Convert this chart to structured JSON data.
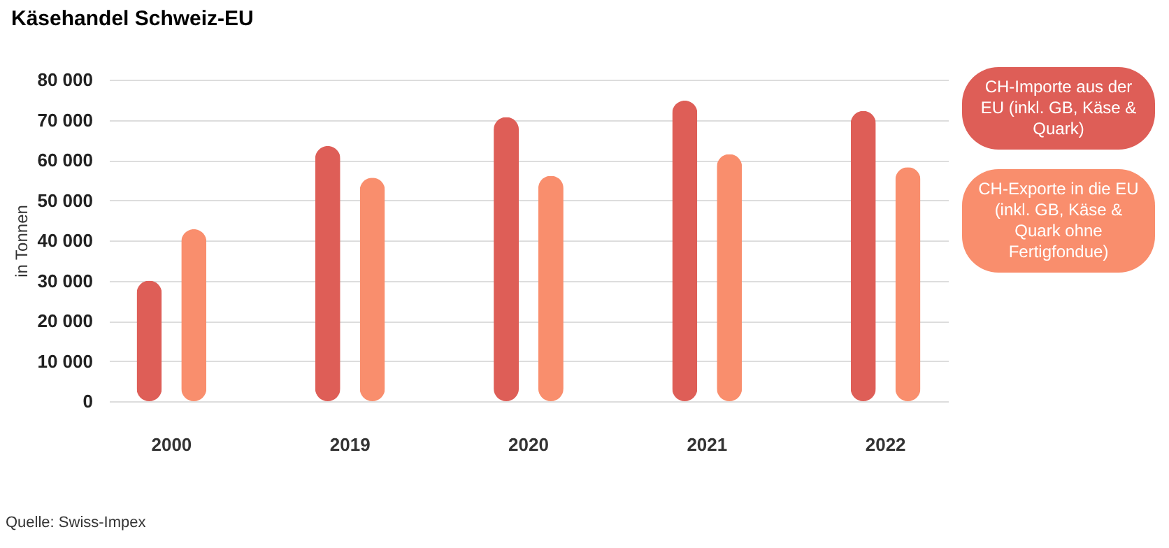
{
  "chart_data": {
    "type": "bar",
    "title": "Käsehandel Schweiz-EU",
    "ylabel": "in Tonnen",
    "categories": [
      "2000",
      "2019",
      "2020",
      "2021",
      "2022"
    ],
    "series": [
      {
        "name": "CH-Importe aus der EU (inkl. GB, Käse & Quark)",
        "color": "#de5e57",
        "values": [
          30000,
          63500,
          70700,
          74800,
          72200
        ]
      },
      {
        "name": "CH-Exporte in die EU (inkl. GB, Käse & Quark ohne Fertigfondue)",
        "color": "#f98e6d",
        "values": [
          42800,
          55600,
          56100,
          61500,
          58200
        ]
      }
    ],
    "ylim": [
      0,
      80000
    ],
    "yticks": [
      {
        "value": 0,
        "label": "0"
      },
      {
        "value": 10000,
        "label": "10 000"
      },
      {
        "value": 20000,
        "label": "20 000"
      },
      {
        "value": 30000,
        "label": "30 000"
      },
      {
        "value": 40000,
        "label": "40 000"
      },
      {
        "value": 50000,
        "label": "50 000"
      },
      {
        "value": 60000,
        "label": "60 000"
      },
      {
        "value": 70000,
        "label": "70 000"
      },
      {
        "value": 80000,
        "label": "80 000"
      }
    ],
    "grid": "y",
    "legend": "top right",
    "annotations": [
      "Quelle: Swiss-Impex"
    ]
  }
}
